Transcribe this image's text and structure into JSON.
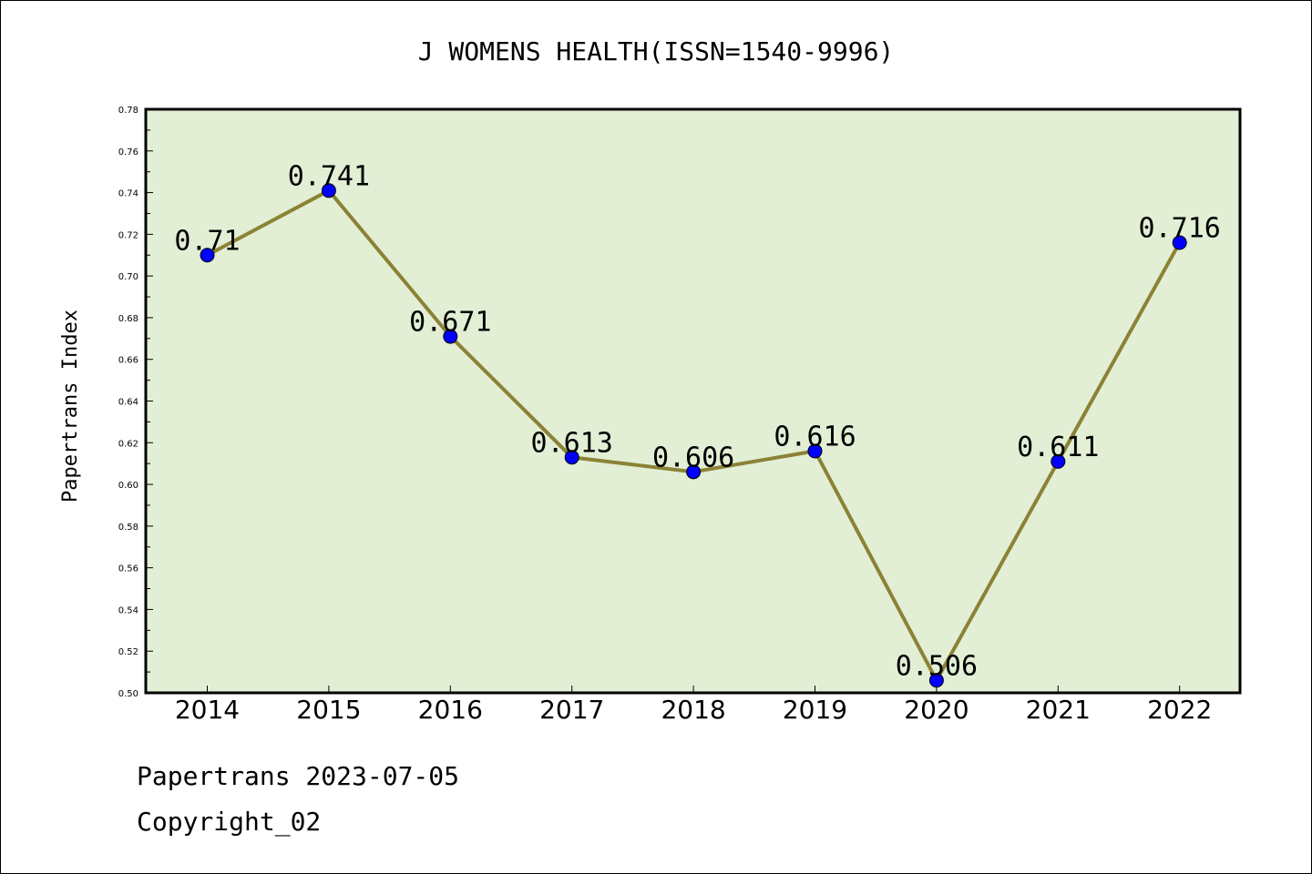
{
  "chart_data": {
    "type": "line",
    "title": "J WOMENS HEALTH(ISSN=1540-9996)",
    "xlabel": "",
    "ylabel": "Papertrans Index",
    "categories": [
      "2014",
      "2015",
      "2016",
      "2017",
      "2018",
      "2019",
      "2020",
      "2021",
      "2022"
    ],
    "series": [
      {
        "values": [
          0.71,
          0.741,
          0.671,
          0.613,
          0.606,
          0.616,
          0.506,
          0.611,
          0.716
        ]
      }
    ],
    "data_labels": [
      "0.71",
      "0.741",
      "0.671",
      "0.613",
      "0.606",
      "0.616",
      "0.506",
      "0.611",
      "0.716"
    ],
    "ylim": [
      0.5,
      0.78
    ],
    "yticks": [
      "0.50",
      "0.52",
      "0.54",
      "0.56",
      "0.58",
      "0.60",
      "0.62",
      "0.64",
      "0.66",
      "0.68",
      "0.70",
      "0.72",
      "0.74",
      "0.76",
      "0.78"
    ],
    "grid": false,
    "legend": "none",
    "colors": {
      "plot_background": "#e2efd5",
      "line": "#8b8236",
      "marker": "#0000ff"
    }
  },
  "footer": {
    "date_line": "Papertrans 2023-07-05",
    "copyright": "Copyright_02"
  }
}
